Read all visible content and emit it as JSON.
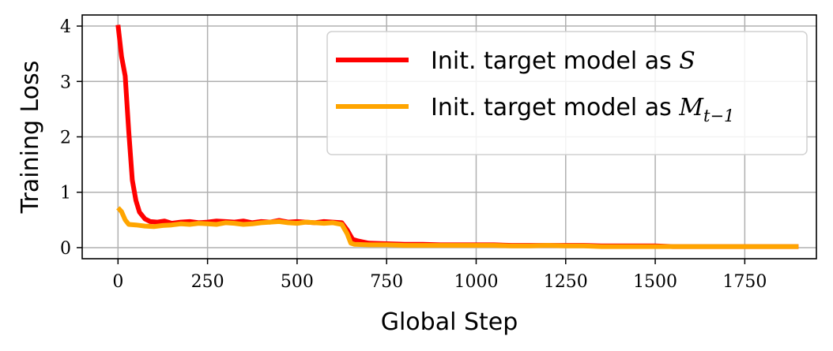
{
  "chart_data": {
    "type": "line",
    "xlabel": "Global Step",
    "ylabel": "Training Loss",
    "xlim": [
      -100,
      1950
    ],
    "ylim": [
      -0.2,
      4.2
    ],
    "xticks": [
      0,
      250,
      500,
      750,
      1000,
      1250,
      1500,
      1750
    ],
    "yticks": [
      0,
      1,
      2,
      3,
      4
    ],
    "xtick_labels": [
      "0",
      "250",
      "500",
      "750",
      "1000",
      "1250",
      "1500",
      "1750"
    ],
    "ytick_labels": [
      "0",
      "1",
      "2",
      "3",
      "4"
    ],
    "grid": true,
    "legend_position": "top-right",
    "series": [
      {
        "name_prefix": "Init. target model as",
        "name_math": "S",
        "name_sub": "",
        "color": "#ff0000",
        "x": [
          0,
          10,
          20,
          30,
          40,
          50,
          60,
          75,
          90,
          110,
          130,
          150,
          175,
          200,
          225,
          250,
          275,
          300,
          325,
          350,
          375,
          400,
          425,
          450,
          475,
          500,
          525,
          550,
          575,
          600,
          625,
          640,
          655,
          670,
          700,
          750,
          800,
          850,
          900,
          950,
          1000,
          1050,
          1100,
          1150,
          1200,
          1250,
          1300,
          1350,
          1400,
          1450,
          1500,
          1550,
          1600,
          1650,
          1700,
          1750,
          1800,
          1850,
          1900
        ],
        "y": [
          4.02,
          3.45,
          3.1,
          2.1,
          1.22,
          0.85,
          0.64,
          0.52,
          0.47,
          0.46,
          0.48,
          0.44,
          0.46,
          0.47,
          0.45,
          0.46,
          0.48,
          0.47,
          0.46,
          0.48,
          0.45,
          0.47,
          0.46,
          0.49,
          0.46,
          0.47,
          0.46,
          0.45,
          0.47,
          0.46,
          0.45,
          0.32,
          0.15,
          0.12,
          0.08,
          0.07,
          0.06,
          0.06,
          0.05,
          0.05,
          0.05,
          0.05,
          0.04,
          0.04,
          0.04,
          0.04,
          0.04,
          0.03,
          0.03,
          0.03,
          0.03,
          0.02,
          0.02,
          0.02,
          0.02,
          0.02,
          0.02,
          0.02,
          0.02
        ]
      },
      {
        "name_prefix": "Init. target model as",
        "name_math": "M",
        "name_sub": "t−1",
        "color": "#ffa500",
        "x": [
          0,
          10,
          20,
          30,
          50,
          75,
          100,
          125,
          150,
          175,
          200,
          225,
          250,
          275,
          300,
          325,
          350,
          375,
          400,
          425,
          450,
          475,
          500,
          525,
          550,
          575,
          600,
          625,
          640,
          650,
          660,
          700,
          750,
          800,
          850,
          900,
          950,
          1000,
          1050,
          1100,
          1150,
          1200,
          1250,
          1300,
          1350,
          1400,
          1450,
          1500,
          1550,
          1600,
          1650,
          1700,
          1750,
          1800,
          1850,
          1900
        ],
        "y": [
          0.72,
          0.65,
          0.5,
          0.42,
          0.41,
          0.39,
          0.38,
          0.4,
          0.41,
          0.43,
          0.42,
          0.44,
          0.43,
          0.42,
          0.45,
          0.44,
          0.42,
          0.43,
          0.45,
          0.46,
          0.47,
          0.45,
          0.44,
          0.46,
          0.45,
          0.44,
          0.45,
          0.42,
          0.25,
          0.08,
          0.06,
          0.05,
          0.05,
          0.04,
          0.04,
          0.04,
          0.04,
          0.04,
          0.04,
          0.03,
          0.03,
          0.04,
          0.03,
          0.03,
          0.02,
          0.02,
          0.02,
          0.02,
          0.02,
          0.02,
          0.02,
          0.02,
          0.02,
          0.02,
          0.02,
          0.02
        ]
      }
    ]
  }
}
